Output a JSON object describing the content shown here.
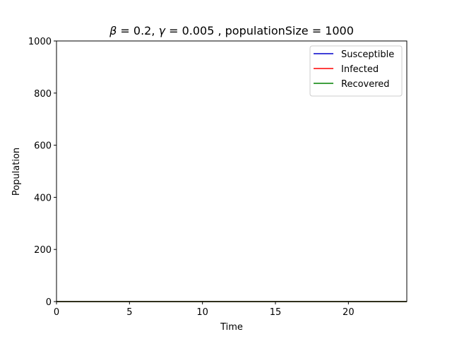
{
  "chart_data": {
    "type": "line",
    "title": "β = 0.2,  γ = 0.005 , populationSize = 1000",
    "title_parts": {
      "beta_symbol": "β",
      "beta_text": " = 0.2,  ",
      "gamma_symbol": "γ",
      "gamma_text": " = 0.005 , populationSize = 1000"
    },
    "xlabel": "Time",
    "ylabel": "Population",
    "xlim": [
      0,
      24
    ],
    "ylim": [
      0,
      1000
    ],
    "xticks": [
      0,
      5,
      10,
      15,
      20
    ],
    "yticks": [
      0,
      200,
      400,
      600,
      800,
      1000
    ],
    "grid": false,
    "legend_position": "top-right",
    "series": [
      {
        "name": "Susceptible",
        "color": "#0000cc",
        "x": [
          0,
          24
        ],
        "y": [
          0,
          0
        ]
      },
      {
        "name": "Infected",
        "color": "#ff0000",
        "x": [
          0,
          24
        ],
        "y": [
          0,
          0
        ]
      },
      {
        "name": "Recovered",
        "color": "#008000",
        "x": [
          0,
          24
        ],
        "y": [
          0,
          0
        ]
      }
    ]
  }
}
